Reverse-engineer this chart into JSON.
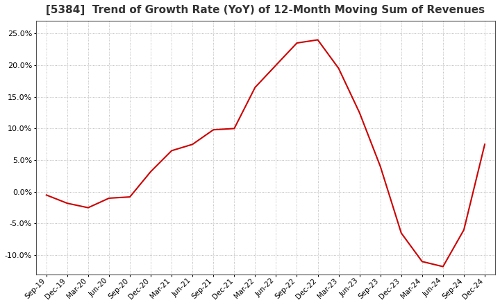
{
  "title": "[5384]  Trend of Growth Rate (YoY) of 12-Month Moving Sum of Revenues",
  "title_fontsize": 11,
  "line_color": "#cc0000",
  "background_color": "#ffffff",
  "grid_color": "#aaaaaa",
  "ylim": [
    -0.13,
    0.27
  ],
  "yticks": [
    -0.1,
    -0.05,
    0.0,
    0.05,
    0.1,
    0.15,
    0.2,
    0.25
  ],
  "x_labels": [
    "Sep-19",
    "Dec-19",
    "Mar-20",
    "Jun-20",
    "Sep-20",
    "Dec-20",
    "Mar-21",
    "Jun-21",
    "Sep-21",
    "Dec-21",
    "Mar-22",
    "Jun-22",
    "Sep-22",
    "Dec-22",
    "Mar-23",
    "Jun-23",
    "Sep-23",
    "Dec-23",
    "Mar-24",
    "Jun-24",
    "Sep-24",
    "Dec-24"
  ],
  "values": [
    -0.005,
    -0.018,
    -0.025,
    -0.01,
    -0.008,
    0.032,
    0.065,
    0.075,
    0.098,
    0.1,
    0.165,
    0.2,
    0.235,
    0.24,
    0.195,
    0.125,
    0.04,
    -0.065,
    -0.11,
    -0.118,
    -0.06,
    0.075
  ]
}
